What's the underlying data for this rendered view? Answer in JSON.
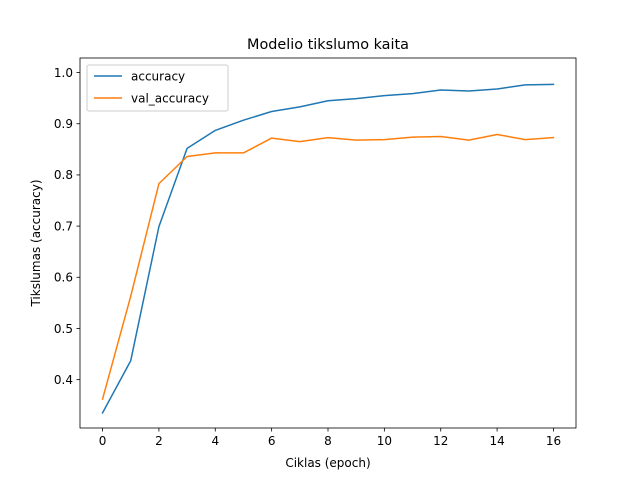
{
  "chart_data": {
    "type": "line",
    "title": "Modelio tikslumo kaita",
    "xlabel": "Ciklas (epoch)",
    "ylabel": "Tikslumas (accuracy)",
    "xlim": [
      -0.8,
      16.8
    ],
    "ylim": [
      0.3055,
      1.0285
    ],
    "xticks": [
      "0",
      "2",
      "4",
      "6",
      "8",
      "10",
      "12",
      "14",
      "16"
    ],
    "yticks": [
      "0.4",
      "0.5",
      "0.6",
      "0.7",
      "0.8",
      "0.9",
      "1.0"
    ],
    "legend_position": "upper-left",
    "grid": false,
    "x": [
      0,
      1,
      2,
      3,
      4,
      5,
      6,
      7,
      8,
      9,
      10,
      11,
      12,
      13,
      14,
      15,
      16
    ],
    "series": [
      {
        "name": "accuracy",
        "color": "#1f77b4",
        "values": [
          0.335,
          0.437,
          0.699,
          0.852,
          0.887,
          0.907,
          0.924,
          0.933,
          0.945,
          0.949,
          0.955,
          0.959,
          0.966,
          0.964,
          0.968,
          0.976,
          0.977
        ]
      },
      {
        "name": "val_accuracy",
        "color": "#ff7f0e",
        "values": [
          0.362,
          0.563,
          0.783,
          0.836,
          0.843,
          0.843,
          0.872,
          0.865,
          0.873,
          0.868,
          0.869,
          0.874,
          0.875,
          0.868,
          0.879,
          0.869,
          0.873
        ]
      }
    ]
  }
}
